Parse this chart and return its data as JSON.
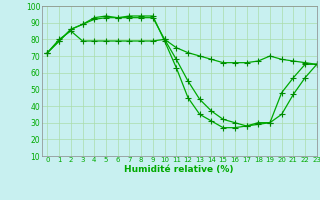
{
  "xlabel": "Humidité relative (%)",
  "bg_color": "#c8f0f0",
  "line_color": "#00aa00",
  "marker_color": "#008800",
  "grid_color": "#aaddaa",
  "axis_color": "#888888",
  "xlim": [
    -0.5,
    23
  ],
  "ylim": [
    10,
    100
  ],
  "xticks": [
    0,
    1,
    2,
    3,
    4,
    5,
    6,
    7,
    8,
    9,
    10,
    11,
    12,
    13,
    14,
    15,
    16,
    17,
    18,
    19,
    20,
    21,
    22,
    23
  ],
  "yticks": [
    10,
    20,
    30,
    40,
    50,
    60,
    70,
    80,
    90,
    100
  ],
  "series1_x": [
    0,
    1,
    2,
    3,
    4,
    5,
    6,
    7,
    8,
    9,
    10,
    11,
    12,
    13,
    14,
    15,
    16,
    17,
    18,
    19,
    20,
    21,
    22,
    23
  ],
  "series1_y": [
    72,
    79,
    86,
    89,
    93,
    94,
    93,
    94,
    94,
    94,
    79,
    63,
    45,
    35,
    31,
    27,
    27,
    28,
    30,
    30,
    48,
    57,
    65,
    65
  ],
  "series2_x": [
    0,
    1,
    2,
    3,
    4,
    5,
    6,
    7,
    8,
    9,
    10,
    11,
    12,
    13,
    14,
    15,
    16,
    17,
    18,
    19,
    20,
    21,
    22,
    23
  ],
  "series2_y": [
    72,
    79,
    86,
    89,
    92,
    93,
    93,
    93,
    93,
    93,
    80,
    68,
    55,
    44,
    37,
    32,
    30,
    28,
    29,
    30,
    35,
    47,
    57,
    65
  ],
  "series3_x": [
    0,
    1,
    2,
    3,
    4,
    5,
    6,
    7,
    8,
    9,
    10,
    11,
    12,
    13,
    14,
    15,
    16,
    17,
    18,
    19,
    20,
    21,
    22,
    23
  ],
  "series3_y": [
    72,
    80,
    85,
    79,
    79,
    79,
    79,
    79,
    79,
    79,
    80,
    75,
    72,
    70,
    68,
    66,
    66,
    66,
    67,
    70,
    68,
    67,
    66,
    65
  ]
}
